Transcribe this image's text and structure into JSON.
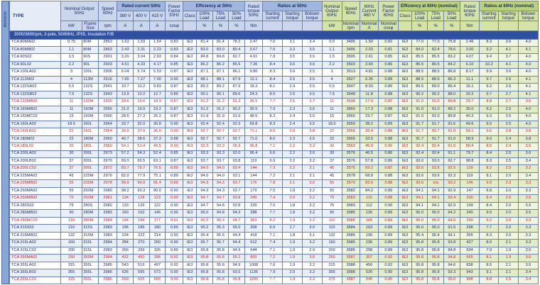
{
  "side_label": "Motorol",
  "headers": {
    "type": "TYPE",
    "nominal_output_50": "Nominal Output 50Hz",
    "frame_size": "Frame Size",
    "rated_current_50": "Rated current 50Hz",
    "speed_50": "Speed 50Hz",
    "v380": "380 V",
    "v400": "400 V",
    "v415": "415 V",
    "power_factor_50": "Power Factor 50Hz",
    "efficiency_50": "Efficiency at 50Hz",
    "class": "Class",
    "load100": "100% Load",
    "load75": "75% Load",
    "load50": "50% Load",
    "rated_torque_50": "Rated torque 50Hz",
    "ratios_50": "Ratios at 50Hz",
    "starting_current": "Starting current",
    "starting_torque": "Starting torque",
    "bdown_torque": "B/down torque",
    "nominal_output_60": "Nominal Output 60Hz",
    "speed_60": "Speed 60Hz",
    "current_460": "60Hz Current 460 V",
    "power_factor_60": "Power Factor 60Hz",
    "efficiency_60": "Efficiency at 60Hz (nominal)",
    "rated_torque_60": "Rated torque 60Hz",
    "ratios_60": "Ratios at 60Hz (nominal)",
    "u_kw": "kW",
    "u_rpm": "rpm",
    "u_a": "A",
    "u_cosf": "cosφ",
    "u_pct": "%",
    "u_nm": "Nm",
    "nominal_rpm": "Nominal rpm",
    "nominal_a": "Nominal A",
    "nominal_cosf": "Nominal cosφ"
  },
  "section_label": "3000/3600rpm, 2-pole, 50/60Hz, IP55, Insulation F/B",
  "rows": [
    [
      "TCA 80MA02",
      "80M",
      "0.75",
      "2852",
      "1.63",
      "1.59",
      "1.54",
      "0.83",
      "IE3",
      "81.4",
      "81.4",
      "78.2",
      "2.47",
      "7.0",
      "3.1",
      "3.4",
      "0.9",
      "3495",
      "1.50",
      "0.82",
      "IE3",
      "77.0",
      "77.0",
      "75.8",
      "2.46",
      "8.3",
      "3.6",
      "4.0",
      0
    ],
    [
      "TCA 80MB02",
      "80M",
      "1.1",
      "2863",
      "2.43",
      "2.31",
      "2.23",
      "0.83",
      "IE3",
      "83.0",
      "83.0",
      "80.4",
      "3.67",
      "7.6",
      "3.3",
      "3.5",
      "1.1",
      "3496",
      "2.03",
      "0.81",
      "IE3",
      "84.0",
      "82.4",
      "78.6",
      "3.00",
      "9.2",
      "4.1",
      "4.1",
      0
    ],
    [
      "TCA 90S02",
      "90S",
      "1.5",
      "2901",
      "3.20",
      "3.04",
      "2.93",
      "0.84",
      "IE3",
      "84.8",
      "84.8",
      "82.7",
      "4.91",
      "7.8",
      "3.5",
      "3.5",
      "1.5",
      "3505",
      "2.61",
      "0.85",
      "IE3",
      "85.5",
      "85.5",
      "83.2",
      "4.07",
      "9.4",
      "3.7",
      "4.0",
      0
    ],
    [
      "TCA 90L02",
      "90L",
      "2.2",
      "2903",
      "4.51",
      "4.33",
      "4.17",
      "0.85",
      "IE3",
      "86.2",
      "86.2",
      "85.5",
      "7.36",
      "8.4",
      "3.6",
      "3.6",
      "2.2",
      "3503",
      "3.69",
      "0.86",
      "IE3",
      "86.5",
      "86.5",
      "84.2",
      "6.10",
      "10.2",
      "4.1",
      "4.0",
      0
    ],
    [
      "TCA 100LA02",
      "100L",
      "3",
      "2906",
      "6.04",
      "5.74",
      "5.53",
      "0.87",
      "IE3",
      "87.1",
      "87.1",
      "86.1",
      "9.86",
      "8.3",
      "3.0",
      "3.5",
      "3",
      "3513",
      "4.81",
      "0.88",
      "IE3",
      "88.5",
      "88.5",
      "86.8",
      "8.17",
      "9.9",
      "3.6",
      "4.0",
      0
    ],
    [
      "TCA 112M02",
      "112M",
      "4",
      "2916",
      "7.65",
      "7.27",
      "7.00",
      "0.90",
      "IE3",
      "88.1",
      "88.1",
      "87.9",
      "13.1",
      "8.4",
      "2.5",
      "3.5",
      "4",
      "3527",
      "6.35",
      "0.89",
      "IE3",
      "88.5",
      "88.5",
      "86.3",
      "11.1",
      "9.7",
      "2.6",
      "4.1",
      0
    ],
    [
      "TCA 132SA02",
      "132S",
      "5.5",
      "2941",
      "10.7",
      "10.2",
      "9.83",
      "0.87",
      "IE3",
      "89.2",
      "89.2",
      "87.9",
      "18.2",
      "8.1",
      "2.4",
      "3.5",
      "5.5",
      "3547",
      "8.93",
      "0.86",
      "IE3",
      "89.5",
      "89.0",
      "86.4",
      "15.1",
      "9.2",
      "2.6",
      "4.1",
      0
    ],
    [
      "TCA 132SB02",
      "132S",
      "7.5",
      "2943",
      "13.9",
      "13.2",
      "12.7",
      "0.89",
      "IE3",
      "90.1",
      "90.1",
      "89.6",
      "24.3",
      "8.5",
      "2.5",
      "3.5",
      "7.5",
      "3548",
      "11.8",
      "0.88",
      "IE3",
      "90.2",
      "90.2",
      "88.0",
      "20.2",
      "9.7",
      "2.7",
      "4.1",
      0
    ],
    [
      "TCA 132MB02",
      "132M",
      "11",
      "2930",
      "20.6",
      "19.6",
      "18.9",
      "0.87",
      "IE3",
      "91.2",
      "91.2",
      "91.2",
      "36.5",
      "7.7",
      "2.5",
      "3.7",
      "11",
      "3538",
      "17.0",
      "0.87",
      "IE3",
      "91.0",
      "91.0",
      "89.8",
      "29.7",
      "8.8",
      "2.7",
      "3.6",
      1
    ],
    [
      "TCA 160MB02",
      "160M",
      "11",
      "2956",
      "21.0",
      "19.9",
      "19.2",
      "0.87",
      "IE3",
      "91.2",
      "91.2",
      "90.2",
      "35.5",
      "7.9",
      "2.3",
      "3.6",
      "11",
      "3560",
      "17.3",
      "0.88",
      "IE3",
      "91.0",
      "91.0",
      "89.2",
      "30.0",
      "9.2",
      "2.5",
      "4.0",
      0
    ],
    [
      "TCA 160MC02",
      "160M",
      "15",
      "2956",
      "28.6",
      "27.2",
      "26.2",
      "0.87",
      "IE3",
      "91.9",
      "91.9",
      "91.5",
      "48.5",
      "8.2",
      "2.4",
      "3.5",
      "15",
      "3560",
      "23.7",
      "0.87",
      "IE3",
      "91.0",
      "91.0",
      "89.8",
      "40.2",
      "9.3",
      "2.5",
      "4.0",
      0
    ],
    [
      "TCA 160LA02",
      "160L",
      "18.5",
      "2954",
      "33.7",
      "32.0",
      "30.8",
      "0.90",
      "IE3",
      "92.4",
      "92.4",
      "92.3",
      "59.8",
      "8.3",
      "2.4",
      "3.5",
      "18.5",
      "3559",
      "28.2",
      "0.89",
      "IE3",
      "91.7",
      "91.7",
      "91.6",
      "49.6",
      "9.5",
      "2.5",
      "4.0",
      0
    ],
    [
      "TCA 160LB02",
      "160L",
      "22",
      "2954",
      "39.9",
      "37.9",
      "36.6",
      "0.90",
      "IE3",
      "92.7",
      "92.7",
      "92.7",
      "71.1",
      "8.5",
      "2.6",
      "3.8",
      "22",
      "3555",
      "33.4",
      "0.89",
      "IE3",
      "91.7",
      "91.7",
      "91.0",
      "59.1",
      "9.6",
      "2.8",
      "3.8",
      1
    ],
    [
      "TCA 180M02",
      "180M",
      "22",
      "2960",
      "40.7",
      "38.6",
      "37.3",
      "0.88",
      "IE3",
      "92.7",
      "92.7",
      "92.7",
      "71.0",
      "8.0",
      "2.3",
      "3.5",
      "22",
      "3565",
      "33.5",
      "0.88",
      "IE3",
      "91.7",
      "91.7",
      "91.0",
      "58.9",
      "9.0",
      "2.4",
      "3.8",
      0
    ],
    [
      "TCA 180L02",
      "180L",
      "30",
      "2960",
      "54.1",
      "51.4",
      "49.5",
      "0.90",
      "IE3",
      "93.3",
      "93.3",
      "96.3",
      "96.8",
      "7.1",
      "2.2",
      "3.2",
      "30",
      "3563",
      "45.0",
      "0.90",
      "IE3",
      "92.4",
      "92.4",
      "91.0",
      "80.4",
      "8.5",
      "2.4",
      "3.5",
      1
    ],
    [
      "TCA 200LA02",
      "200L",
      "30",
      "2973",
      "57.2",
      "54.3",
      "52.4",
      "0.85",
      "IE3",
      "93.3",
      "93.3",
      "92.0",
      "96.4",
      "6.6",
      "2.2",
      "3.0",
      "30",
      "3576",
      "46.5",
      "0.86",
      "IE3",
      "92.4",
      "92.4",
      "91.1",
      "79.7",
      "8.4",
      "2.5",
      "3.6",
      0
    ],
    [
      "TCA 200LB02",
      "200L",
      "37",
      "2970",
      "69.0",
      "65.5",
      "63.1",
      "0.87",
      "IE3",
      "93.7",
      "93.7",
      "93.8",
      "119",
      "6.9",
      "2.2",
      "3.2",
      "37",
      "3576",
      "57.8",
      "0.86",
      "IE3",
      "93.0",
      "93.0",
      "92.7",
      "98.8",
      "8.3",
      "2.5",
      "3.4",
      0
    ],
    [
      "TCA 200LC02",
      "200L",
      "37",
      "2972",
      "83.7",
      "79.7",
      "76.5",
      "0.89",
      "IE3",
      "94.0",
      "94.0",
      "93.4",
      "144",
      "7.3",
      "2.2",
      "3.1",
      "45",
      "3576",
      "69.2",
      "0.87",
      "IE3",
      "93.6",
      "93.6",
      "92.5",
      "120",
      "8.2",
      "2.5",
      "3.2",
      1
    ],
    [
      "TCA 225MA02",
      "225M",
      "45",
      "2976",
      "82.0",
      "77.9",
      "75.1",
      "0.89",
      "IE3",
      "94.0",
      "94.0",
      "93.1",
      "144",
      "7.2",
      "2.1",
      "3.1",
      "45",
      "3578",
      "68.8",
      "0.88",
      "IE3",
      "93.6",
      "93.6",
      "92.3",
      "119",
      "8.1",
      "2.0",
      "3.4",
      0
    ],
    [
      "TCA 225MB02",
      "225M",
      "55",
      "2978",
      "99.9",
      "94.9",
      "91.4",
      "0.89",
      "IE3",
      "94.3",
      "94.3",
      "93.7",
      "176",
      "7.8",
      "2.1",
      "3.0",
      "55",
      "3579",
      "83.6",
      "0.88",
      "IE3",
      "93.6",
      "n/a",
      "93.2",
      "146",
      "9.0",
      "2.3",
      "3.3",
      1
    ],
    [
      "TCA 250MA02",
      "250M",
      "55",
      "2980",
      "98.2",
      "93.3",
      "90.0",
      "0.90",
      "IE3",
      "94.3",
      "94.3",
      "93.7",
      "179",
      "7.5",
      "1.8",
      "3.2",
      "55",
      "3582",
      "84.2",
      "0.89",
      "IE3",
      "94.1",
      "94.1",
      "92.9",
      "147",
      "8.8",
      "2.0",
      "3.3",
      0
    ],
    [
      "TCA 250MB02",
      "250M",
      "75",
      "2981",
      "134",
      "128",
      "123",
      "0.90",
      "IE3",
      "94.7",
      "94.7",
      "93.8",
      "240",
      "7.4",
      "2.0",
      "3.2",
      "75",
      "3583",
      "115",
      "0.88",
      "IE3",
      "94.1",
      "94.1",
      "93.4",
      "200",
      "8.4",
      "2.5",
      "3.5",
      1
    ],
    [
      "TCA 280S02",
      "280S",
      "75",
      "2982",
      "133",
      "126",
      "122",
      "0.90",
      "IE3",
      "94.7",
      "94.8",
      "93.8",
      "239",
      "7.5",
      "1.8",
      "3.2",
      "75",
      "3583",
      "112",
      "0.90",
      "IE3",
      "94.1",
      "94.1",
      "92.9",
      "199",
      "8.4",
      "2.0",
      "3.5",
      0
    ],
    [
      "TCA 280MB02",
      "280M",
      "90",
      "2983",
      "160",
      "152",
      "146",
      "0.90",
      "IE3",
      "95.0",
      "94.8",
      "94.3",
      "288",
      "7.7",
      "1.8",
      "3.2",
      "90",
      "3585",
      "135",
      "0.89",
      "IE3",
      "95.0",
      "95.0",
      "94.2",
      "240",
      "9.0",
      "2.0",
      "3.5",
      0
    ],
    [
      "TCA 280MC02",
      "280M",
      "110",
      "2984",
      "194",
      "184",
      "177",
      "0.91",
      "IE3",
      "95.2",
      "95.3",
      "94.7",
      "353",
      "8.2",
      "1.9",
      "3.2",
      "110",
      "3586",
      "165",
      "0.89",
      "IE3",
      "95.0",
      "95.0",
      "94.0",
      "290",
      "9.2",
      "2.0",
      "3.3",
      1
    ],
    [
      "TCA 315S02",
      "315S",
      "110",
      "2983",
      "196",
      "186",
      "180",
      "0.89",
      "IE3",
      "95.2",
      "95.3",
      "95.0",
      "358",
      "6.9",
      "1.7",
      "3.0",
      "110",
      "3584",
      "163",
      "0.89",
      "IE3",
      "95.0",
      "95.0",
      "91.5",
      "298",
      "7.7",
      "2.0",
      "3.3",
      0
    ],
    [
      "TCA 315MB02",
      "315M",
      "132",
      "2983",
      "234",
      "222",
      "214",
      "0.90",
      "IE3",
      "95.4",
      "95.6",
      "94.4",
      "418",
      "7.1",
      "1.8",
      "3.1",
      "132",
      "3585",
      "195",
      "0.89",
      "IE3",
      "95.4",
      "95.4",
      "94.1",
      "355",
      "8.3",
      "2.0",
      "3.3",
      0
    ],
    [
      "TCA 315LA02",
      "315L",
      "160",
      "2984",
      "284",
      "270",
      "260",
      "0.90",
      "IE3",
      "95.7",
      "95.7",
      "94.4",
      "512",
      "7.4",
      "1.9",
      "3.2",
      "160",
      "3585",
      "236",
      "0.89",
      "IE3",
      "95.8",
      "95.8",
      "93.8",
      "427",
      "8.0",
      "2.1",
      "3.3",
      0
    ],
    [
      "TCA 315LC02",
      "315L",
      "200",
      "2983",
      "356",
      "339",
      "326",
      "0.89",
      "IE3",
      "95.8",
      "95.8",
      "94.9",
      "644",
      "7.1",
      "1.9",
      "2.9",
      "200",
      "3585",
      "298",
      "0.89",
      "IE3",
      "95.8",
      "95.8",
      "94.8",
      "534",
      "7.9",
      "1.9",
      "3.0",
      0
    ],
    [
      "TCA 355MA02",
      "355M",
      "250",
      "2984",
      "432",
      "410",
      "396",
      "0.92",
      "IE3",
      "95.8",
      "95.8",
      "95.1",
      "800",
      "7.2",
      "1.9",
      "3.0",
      "250",
      "3587",
      "357",
      "0.92",
      "IE3",
      "95.8",
      "95.8",
      "94.8",
      "665",
      "8.1",
      "1.9",
      "3.0",
      1
    ],
    [
      "TCA 355LA02",
      "355L",
      "315",
      "2985",
      "543",
      "516",
      "497",
      "0.92",
      "IE3",
      "95.8",
      "95.8",
      "94.9",
      "1008",
      "7.6",
      "1.9",
      "3.2",
      "315",
      "3588",
      "450",
      "0.92",
      "IE3",
      "95.8",
      "95.8",
      "94.6",
      "838",
      "8.5",
      "2.1",
      "3.5",
      0
    ],
    [
      "TCA 355LB02",
      "355L",
      "355",
      "2986",
      "626",
      "595",
      "573",
      "0.90",
      "IE3",
      "95.8",
      "95.8",
      "93.5",
      "1136",
      "7.9",
      "2.0",
      "3.2",
      "355",
      "3588",
      "520",
      "0.90",
      "IE3",
      "95.8",
      "95.8",
      "93.3",
      "943",
      "9.1",
      "2.1",
      "3.4",
      0
    ],
    [
      "TCA 355LC02",
      "355L",
      "375",
      "2986",
      "659",
      "626",
      "603",
      "0.90",
      "IE3",
      "95.8",
      "95.8",
      "95.8",
      "1200",
      "7.7",
      "1.9",
      "3.3",
      "375",
      "3587",
      "546",
      "0.90",
      "IE3",
      "95.8",
      "95.8",
      "95.0",
      "998",
      "8.8",
      "2.5",
      "3.4",
      1
    ]
  ]
}
